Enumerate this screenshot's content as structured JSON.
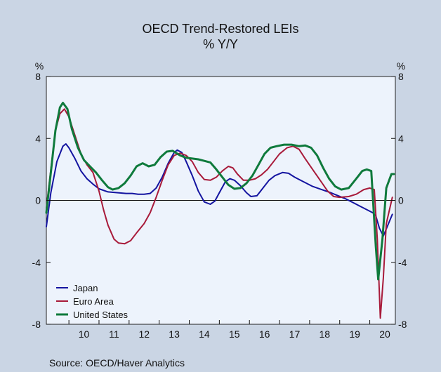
{
  "title": "OECD Trend-Restored LEIs",
  "subtitle": "% Y/Y",
  "source": "Source:   OECD/Haver Analytics",
  "chart_data": {
    "type": "line",
    "title": "OECD Trend-Restored LEIs",
    "subtitle": "% Y/Y",
    "left_unit": "%",
    "right_unit": "%",
    "ylim": [
      -8,
      8
    ],
    "yticks": [
      8,
      4,
      0,
      -4,
      -8
    ],
    "yticks_right": [
      8,
      4,
      0,
      -4,
      -8
    ],
    "xlim": [
      2009.25,
      2020.85
    ],
    "xticks": [
      "10",
      "11",
      "12",
      "13",
      "14",
      "15",
      "16",
      "17",
      "18",
      "19",
      "20"
    ],
    "grid": false,
    "zero_line": true,
    "legend_position": "bottom-left",
    "series": [
      {
        "name": "Japan",
        "color": "#1414a0",
        "points": [
          [
            2009.25,
            -1.7
          ],
          [
            2009.4,
            0.5
          ],
          [
            2009.6,
            2.5
          ],
          [
            2009.8,
            3.5
          ],
          [
            2009.9,
            3.65
          ],
          [
            2010.0,
            3.4
          ],
          [
            2010.2,
            2.7
          ],
          [
            2010.4,
            1.9
          ],
          [
            2010.6,
            1.4
          ],
          [
            2010.8,
            1.05
          ],
          [
            2011.0,
            0.75
          ],
          [
            2011.3,
            0.55
          ],
          [
            2011.6,
            0.5
          ],
          [
            2011.9,
            0.45
          ],
          [
            2012.1,
            0.45
          ],
          [
            2012.3,
            0.4
          ],
          [
            2012.5,
            0.4
          ],
          [
            2012.7,
            0.45
          ],
          [
            2012.9,
            0.8
          ],
          [
            2013.1,
            1.5
          ],
          [
            2013.3,
            2.4
          ],
          [
            2013.5,
            3.1
          ],
          [
            2013.6,
            3.25
          ],
          [
            2013.75,
            3.1
          ],
          [
            2013.9,
            2.5
          ],
          [
            2014.1,
            1.6
          ],
          [
            2014.3,
            0.6
          ],
          [
            2014.5,
            -0.1
          ],
          [
            2014.7,
            -0.25
          ],
          [
            2014.85,
            -0.05
          ],
          [
            2015.0,
            0.5
          ],
          [
            2015.2,
            1.2
          ],
          [
            2015.35,
            1.4
          ],
          [
            2015.5,
            1.3
          ],
          [
            2015.7,
            0.95
          ],
          [
            2015.9,
            0.5
          ],
          [
            2016.05,
            0.25
          ],
          [
            2016.25,
            0.3
          ],
          [
            2016.45,
            0.8
          ],
          [
            2016.65,
            1.3
          ],
          [
            2016.85,
            1.6
          ],
          [
            2017.1,
            1.8
          ],
          [
            2017.3,
            1.75
          ],
          [
            2017.5,
            1.5
          ],
          [
            2017.8,
            1.2
          ],
          [
            2018.1,
            0.9
          ],
          [
            2018.4,
            0.7
          ],
          [
            2018.7,
            0.5
          ],
          [
            2018.95,
            0.3
          ],
          [
            2019.2,
            0.1
          ],
          [
            2019.5,
            -0.2
          ],
          [
            2019.8,
            -0.5
          ],
          [
            2020.1,
            -0.8
          ],
          [
            2020.2,
            -1.0
          ],
          [
            2020.32,
            -1.8
          ],
          [
            2020.45,
            -2.3
          ],
          [
            2020.58,
            -1.7
          ],
          [
            2020.75,
            -0.9
          ]
        ]
      },
      {
        "name": "Euro Area",
        "color": "#a81a3a",
        "points": [
          [
            2009.25,
            -0.5
          ],
          [
            2009.4,
            2.0
          ],
          [
            2009.55,
            4.5
          ],
          [
            2009.7,
            5.6
          ],
          [
            2009.85,
            5.9
          ],
          [
            2010.0,
            5.4
          ],
          [
            2010.2,
            4.2
          ],
          [
            2010.4,
            3.0
          ],
          [
            2010.6,
            2.3
          ],
          [
            2010.8,
            1.8
          ],
          [
            2011.0,
            0.6
          ],
          [
            2011.15,
            -0.6
          ],
          [
            2011.3,
            -1.6
          ],
          [
            2011.5,
            -2.5
          ],
          [
            2011.65,
            -2.75
          ],
          [
            2011.85,
            -2.8
          ],
          [
            2012.05,
            -2.6
          ],
          [
            2012.25,
            -2.1
          ],
          [
            2012.5,
            -1.5
          ],
          [
            2012.7,
            -0.8
          ],
          [
            2012.9,
            0.2
          ],
          [
            2013.1,
            1.3
          ],
          [
            2013.3,
            2.3
          ],
          [
            2013.5,
            2.9
          ],
          [
            2013.7,
            3.05
          ],
          [
            2013.9,
            2.9
          ],
          [
            2014.1,
            2.5
          ],
          [
            2014.3,
            1.8
          ],
          [
            2014.5,
            1.35
          ],
          [
            2014.7,
            1.3
          ],
          [
            2014.9,
            1.5
          ],
          [
            2015.1,
            1.9
          ],
          [
            2015.3,
            2.2
          ],
          [
            2015.45,
            2.1
          ],
          [
            2015.6,
            1.7
          ],
          [
            2015.8,
            1.3
          ],
          [
            2016.0,
            1.3
          ],
          [
            2016.2,
            1.4
          ],
          [
            2016.4,
            1.65
          ],
          [
            2016.6,
            2.0
          ],
          [
            2016.8,
            2.5
          ],
          [
            2017.0,
            3.0
          ],
          [
            2017.25,
            3.4
          ],
          [
            2017.45,
            3.5
          ],
          [
            2017.65,
            3.3
          ],
          [
            2017.85,
            2.7
          ],
          [
            2018.1,
            2.0
          ],
          [
            2018.35,
            1.3
          ],
          [
            2018.6,
            0.6
          ],
          [
            2018.8,
            0.25
          ],
          [
            2019.0,
            0.2
          ],
          [
            2019.3,
            0.25
          ],
          [
            2019.55,
            0.4
          ],
          [
            2019.8,
            0.7
          ],
          [
            2020.0,
            0.8
          ],
          [
            2020.15,
            0.7
          ],
          [
            2020.25,
            -2.5
          ],
          [
            2020.35,
            -7.6
          ],
          [
            2020.45,
            -5.0
          ],
          [
            2020.55,
            -1.5
          ],
          [
            2020.75,
            0.2
          ]
        ]
      },
      {
        "name": "United States",
        "color": "#0f7a3c",
        "points": [
          [
            2009.25,
            -0.8
          ],
          [
            2009.4,
            1.8
          ],
          [
            2009.55,
            4.5
          ],
          [
            2009.7,
            6.0
          ],
          [
            2009.8,
            6.3
          ],
          [
            2009.95,
            5.9
          ],
          [
            2010.1,
            4.6
          ],
          [
            2010.3,
            3.4
          ],
          [
            2010.5,
            2.6
          ],
          [
            2010.7,
            2.2
          ],
          [
            2010.9,
            1.8
          ],
          [
            2011.1,
            1.3
          ],
          [
            2011.3,
            0.85
          ],
          [
            2011.45,
            0.7
          ],
          [
            2011.65,
            0.8
          ],
          [
            2011.85,
            1.1
          ],
          [
            2012.05,
            1.6
          ],
          [
            2012.25,
            2.2
          ],
          [
            2012.45,
            2.4
          ],
          [
            2012.65,
            2.2
          ],
          [
            2012.85,
            2.3
          ],
          [
            2013.05,
            2.8
          ],
          [
            2013.25,
            3.15
          ],
          [
            2013.45,
            3.2
          ],
          [
            2013.7,
            2.9
          ],
          [
            2013.9,
            2.75
          ],
          [
            2014.1,
            2.7
          ],
          [
            2014.3,
            2.65
          ],
          [
            2014.5,
            2.55
          ],
          [
            2014.7,
            2.45
          ],
          [
            2014.9,
            2.0
          ],
          [
            2015.1,
            1.5
          ],
          [
            2015.3,
            1.0
          ],
          [
            2015.5,
            0.75
          ],
          [
            2015.7,
            0.8
          ],
          [
            2015.9,
            1.1
          ],
          [
            2016.1,
            1.6
          ],
          [
            2016.3,
            2.3
          ],
          [
            2016.5,
            3.0
          ],
          [
            2016.7,
            3.4
          ],
          [
            2016.9,
            3.5
          ],
          [
            2017.15,
            3.6
          ],
          [
            2017.4,
            3.6
          ],
          [
            2017.65,
            3.5
          ],
          [
            2017.85,
            3.55
          ],
          [
            2018.05,
            3.4
          ],
          [
            2018.25,
            2.9
          ],
          [
            2018.45,
            2.1
          ],
          [
            2018.65,
            1.4
          ],
          [
            2018.85,
            0.9
          ],
          [
            2019.05,
            0.7
          ],
          [
            2019.3,
            0.8
          ],
          [
            2019.55,
            1.4
          ],
          [
            2019.75,
            1.9
          ],
          [
            2019.9,
            2.0
          ],
          [
            2020.05,
            1.9
          ],
          [
            2020.2,
            -3.0
          ],
          [
            2020.28,
            -5.1
          ],
          [
            2020.42,
            -2.5
          ],
          [
            2020.55,
            0.8
          ],
          [
            2020.72,
            1.7
          ],
          [
            2020.8,
            1.7
          ]
        ]
      }
    ]
  }
}
